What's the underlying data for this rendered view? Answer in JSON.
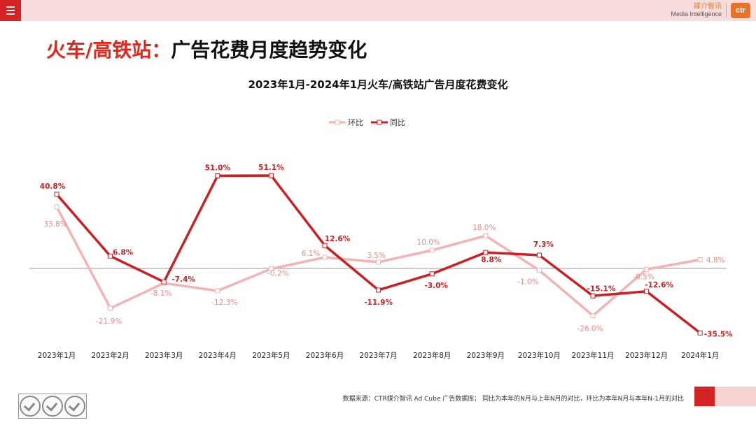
{
  "header": {
    "brand_cn": "媒介智讯",
    "brand_en": "Media Intelligence",
    "brand_logo": "ctr"
  },
  "title": {
    "part1": "火车/高铁站：",
    "part2": "广告花费月度趋势变化"
  },
  "colors": {
    "accent": "#d52223",
    "huanbi": "#f4b3b3",
    "tongbi": "#cc1f22"
  },
  "chart_data": {
    "type": "line",
    "title": "2023年1月-2024年1月火车/高铁站广告月度花费变化",
    "categories": [
      "2023年1月",
      "2023年2月",
      "2023年3月",
      "2023年4月",
      "2023年5月",
      "2023年6月",
      "2023年7月",
      "2023年8月",
      "2023年9月",
      "2023年10月",
      "2023年11月",
      "2023年12月",
      "2024年1月"
    ],
    "series": [
      {
        "name": "环比",
        "values": [
          33.8,
          -21.9,
          -8.1,
          -12.3,
          -0.2,
          6.1,
          3.5,
          10.0,
          18.0,
          -1.0,
          -26.0,
          -0.5,
          4.8
        ],
        "labels": [
          "33.8%",
          "-21.9%",
          "-8.1%",
          "-12.3%",
          "-0.2%",
          "6.1%",
          "3.5%",
          "10.0%",
          "18.0%",
          "-1.0%",
          "-26.0%",
          "-0.5%",
          "4.8%"
        ]
      },
      {
        "name": "同比",
        "values": [
          40.8,
          6.8,
          -7.4,
          51.0,
          51.1,
          12.6,
          -11.9,
          -3.0,
          8.8,
          7.3,
          -15.1,
          -12.6,
          -35.5
        ],
        "labels": [
          "40.8%",
          "6.8%",
          "-7.4%",
          "51.0%",
          "51.1%",
          "12.6%",
          "-11.9%",
          "-3.0%",
          "8.8%",
          "7.3%",
          "-15.1%",
          "-12.6%",
          "-35.5%"
        ]
      }
    ],
    "legend": "top-center",
    "grid": false,
    "ylim": [
      -40,
      60
    ]
  },
  "footer": {
    "source": "数据来源：CTR媒介智讯 Ad Cube 广告数据库； 同比为本年的N月与上年N月的对比，环比为本年N月与本年N-1月的对比"
  }
}
